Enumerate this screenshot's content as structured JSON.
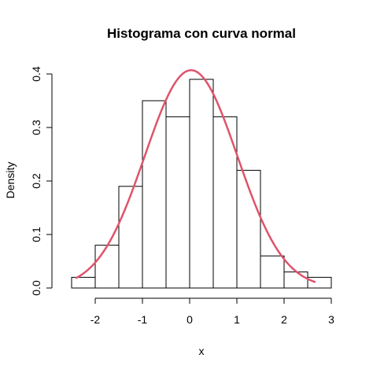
{
  "chart_data": {
    "type": "bar",
    "title": "Histograma con curva normal",
    "xlabel": "x",
    "ylabel": "Density",
    "xlim": [
      -2.5,
      3.0
    ],
    "ylim": [
      0.0,
      0.4
    ],
    "x_ticks": [
      -2,
      -1,
      0,
      1,
      2,
      3
    ],
    "y_ticks": [
      0.0,
      0.1,
      0.2,
      0.3,
      0.4
    ],
    "x_tick_labels": [
      "-2",
      "-1",
      "0",
      "1",
      "2",
      "3"
    ],
    "y_tick_labels": [
      "0.0",
      "0.1",
      "0.2",
      "0.3",
      "0.4"
    ],
    "bins": [
      {
        "x0": -2.5,
        "x1": -2.0,
        "density": 0.02
      },
      {
        "x0": -2.0,
        "x1": -1.5,
        "density": 0.08
      },
      {
        "x0": -1.5,
        "x1": -1.0,
        "density": 0.19
      },
      {
        "x0": -1.0,
        "x1": -0.5,
        "density": 0.35
      },
      {
        "x0": -0.5,
        "x1": 0.0,
        "density": 0.32
      },
      {
        "x0": 0.0,
        "x1": 0.5,
        "density": 0.39
      },
      {
        "x0": 0.5,
        "x1": 1.0,
        "density": 0.32
      },
      {
        "x0": 1.0,
        "x1": 1.5,
        "density": 0.22
      },
      {
        "x0": 1.5,
        "x1": 2.0,
        "density": 0.06
      },
      {
        "x0": 2.0,
        "x1": 2.5,
        "density": 0.03
      },
      {
        "x0": 2.5,
        "x1": 3.0,
        "density": 0.02
      }
    ],
    "normal_curve": {
      "mean": 0.03,
      "sd": 0.98,
      "x_range": [
        -2.4,
        2.65
      ],
      "color": "#DF536B"
    },
    "grid": false,
    "legend": "none"
  }
}
